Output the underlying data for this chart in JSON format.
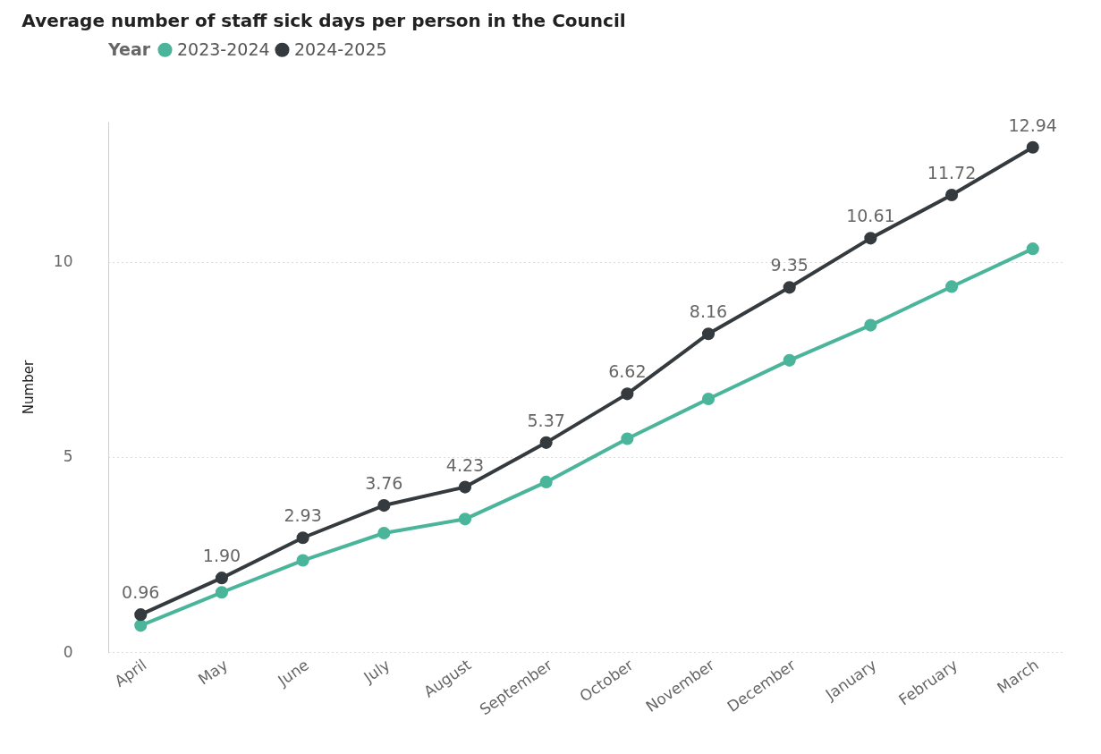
{
  "chart_data": {
    "type": "line",
    "title": "Average number of staff sick days per person in the Council",
    "ylabel": "Number",
    "legend_title": "Year",
    "legend": "top left",
    "grid": "y",
    "marker": "circle",
    "line_style": "solid",
    "categories": [
      "April",
      "May",
      "June",
      "July",
      "August",
      "September",
      "October",
      "November",
      "December",
      "January",
      "February",
      "March"
    ],
    "ylim": [
      0,
      13.6
    ],
    "yticks": [
      0,
      5,
      10
    ],
    "series": [
      {
        "name": "2023-2024",
        "color": "#4ab59a",
        "values": [
          0.68,
          1.53,
          2.35,
          3.05,
          3.41,
          4.36,
          5.47,
          6.49,
          7.48,
          8.38,
          9.37,
          10.34
        ]
      },
      {
        "name": "2024-2025",
        "color": "#343a3d",
        "values": [
          0.96,
          1.9,
          2.93,
          3.76,
          4.23,
          5.37,
          6.62,
          8.16,
          9.35,
          10.61,
          11.72,
          12.94
        ],
        "value_labels": [
          "0.96",
          "1.90",
          "2.93",
          "3.76",
          "4.23",
          "5.37",
          "6.62",
          "8.16",
          "9.35",
          "10.61",
          "11.72",
          "12.94"
        ]
      }
    ]
  }
}
